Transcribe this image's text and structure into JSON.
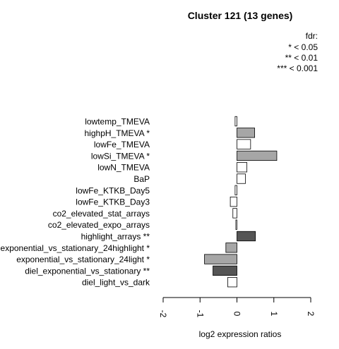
{
  "chart_data": {
    "type": "bar",
    "orientation": "horizontal",
    "title": "Cluster 121 (13 genes)",
    "xlabel": "log2 expression ratios",
    "ylabel": "",
    "xlim": [
      -2,
      2
    ],
    "xticks": [
      "-2",
      "-1",
      "0",
      "1",
      "2"
    ],
    "grid": false,
    "legend_placement": "top-right",
    "legend": {
      "title": "fdr:",
      "entries": [
        "* < 0.05",
        "** < 0.01",
        "*** < 0.001"
      ]
    },
    "categories": [
      "lowtemp_TMEVA",
      "highpH_TMEVA *",
      "lowFe_TMEVA",
      "lowSi_TMEVA *",
      "lowN_TMEVA",
      "BaP",
      "lowFe_KTKB_Day5",
      "lowFe_KTKB_Day3",
      "co2_elevated_stat_arrays",
      "co2_elevated_expo_arrays",
      "highlight_arrays **",
      "exponential_vs_stationary_24highlight *",
      "exponential_vs_stationary_24light *",
      "diel_exponential_vs_stationary **",
      "diel_light_vs_dark"
    ],
    "values": [
      -0.05,
      0.48,
      0.37,
      1.08,
      0.27,
      0.23,
      -0.05,
      -0.18,
      -0.11,
      -0.03,
      0.5,
      -0.3,
      -0.88,
      -0.65,
      -0.25
    ],
    "bar_colors": [
      "#ffffff",
      "#a6a6a6",
      "#ffffff",
      "#a6a6a6",
      "#ffffff",
      "#ffffff",
      "#ffffff",
      "#ffffff",
      "#ffffff",
      "#ffffff",
      "#555555",
      "#a6a6a6",
      "#a6a6a6",
      "#555555",
      "#ffffff"
    ]
  }
}
